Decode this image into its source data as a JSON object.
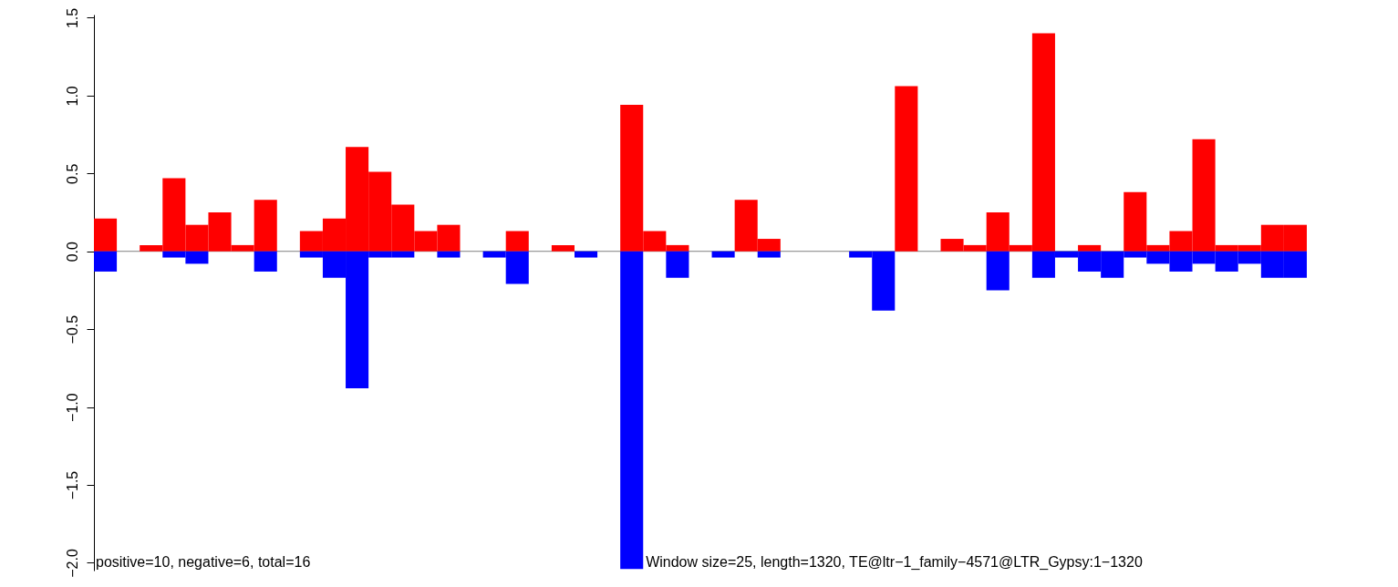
{
  "chart_data": {
    "type": "bar",
    "categories": [
      null,
      null,
      null,
      null,
      null,
      null,
      null,
      null,
      null,
      null,
      null,
      null,
      null,
      null,
      null,
      null,
      null,
      null,
      null,
      null,
      null,
      null,
      null,
      null,
      null,
      null,
      null,
      null,
      null,
      null,
      null,
      null,
      null,
      null,
      null,
      null,
      null,
      null,
      null,
      null,
      null,
      null,
      null,
      null,
      null,
      null,
      null,
      null,
      null,
      null,
      null,
      null,
      null
    ],
    "series": [
      {
        "color": "#ff0000",
        "values": [
          0.21,
          null,
          0.04,
          0.47,
          0.17,
          0.25,
          0.04,
          0.33,
          null,
          0.13,
          0.21,
          0.67,
          0.51,
          0.3,
          0.13,
          0.17,
          null,
          null,
          0.13,
          null,
          0.04,
          null,
          null,
          0.94,
          0.13,
          0.04,
          null,
          null,
          0.33,
          0.08,
          null,
          null,
          null,
          null,
          null,
          1.06,
          null,
          0.08,
          0.04,
          0.25,
          0.04,
          1.4,
          null,
          0.04,
          null,
          0.38,
          0.04,
          0.13,
          0.72,
          0.04,
          0.04,
          0.17,
          0.17
        ]
      },
      {
        "color": "#0000ff",
        "values": [
          -0.13,
          null,
          null,
          -0.04,
          -0.08,
          null,
          null,
          -0.13,
          null,
          -0.04,
          -0.17,
          -0.88,
          -0.04,
          -0.04,
          null,
          -0.04,
          null,
          -0.04,
          -0.21,
          null,
          null,
          -0.04,
          null,
          -2.04,
          null,
          -0.17,
          null,
          -0.04,
          null,
          -0.04,
          null,
          null,
          null,
          -0.04,
          -0.38,
          null,
          null,
          null,
          null,
          -0.25,
          null,
          -0.17,
          -0.04,
          -0.13,
          -0.17,
          -0.04,
          -0.08,
          -0.13,
          -0.08,
          -0.13,
          -0.08,
          -0.17,
          -0.17
        ]
      }
    ],
    "ylim": [
      -2.05,
      1.52
    ],
    "yticks": [
      {
        "value": -2,
        "label": "−2.0"
      },
      {
        "value": -1.5,
        "label": "−1.5"
      },
      {
        "value": -1,
        "label": "−1.0"
      },
      {
        "value": -0.5,
        "label": "−0.5"
      },
      {
        "value": 0,
        "label": "0.0"
      },
      {
        "value": 0.5,
        "label": "0.5"
      },
      {
        "value": 1,
        "label": "1.0"
      },
      {
        "value": 1.5,
        "label": "1.5"
      }
    ],
    "tick_labels": "y",
    "ref_lines": [
      {
        "axis": "y",
        "value": 0,
        "color": "#808080"
      }
    ],
    "annotations": [
      "positive=10, negative=6, total=16",
      "Window size=25, length=1320, TE@ltr−1_family−4571@LTR_Gypsy:1−1320"
    ]
  }
}
